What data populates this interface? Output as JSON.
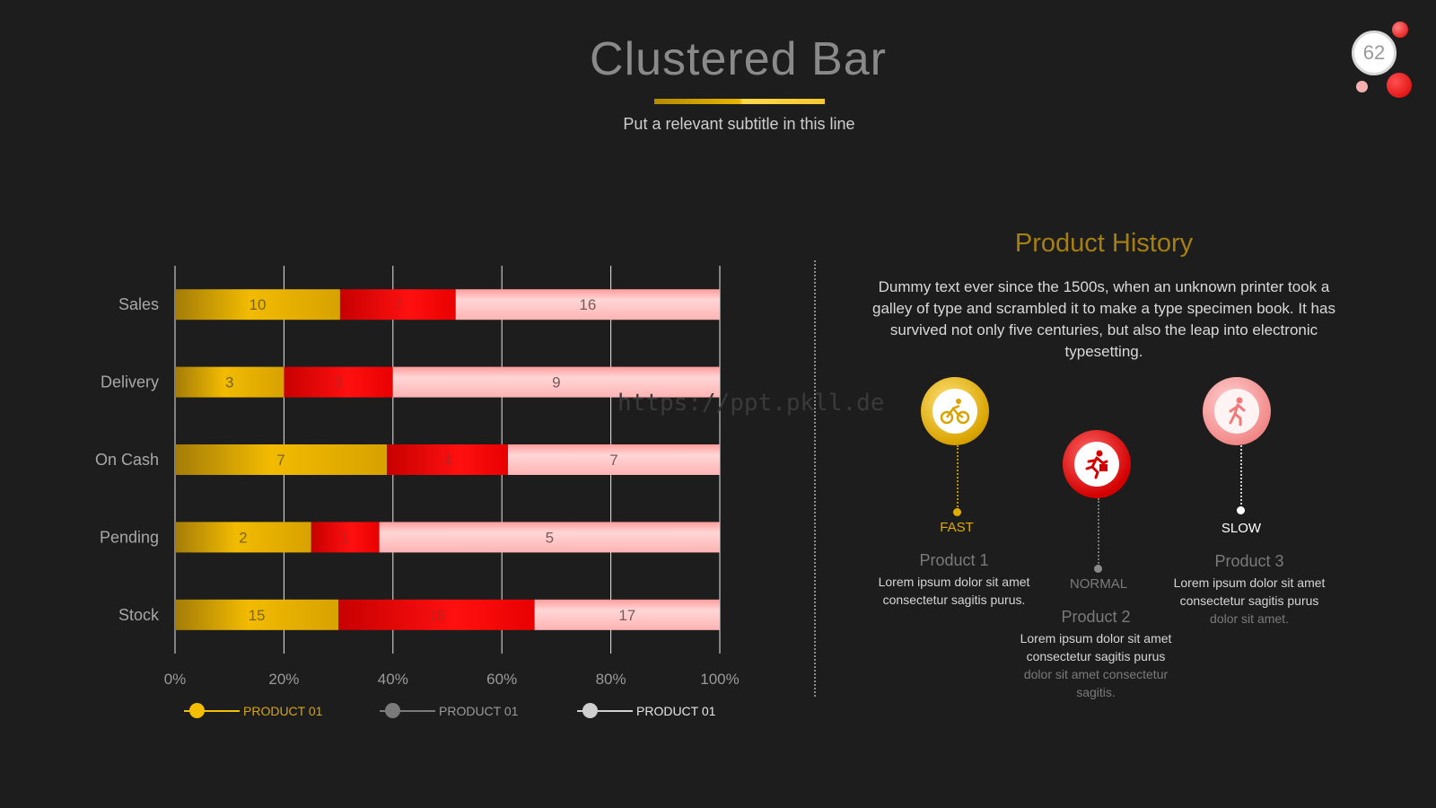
{
  "header": {
    "title": "Clustered Bar",
    "subtitle": "Put a relevant subtitle in this line",
    "page_number": "62"
  },
  "chart_data": {
    "type": "bar",
    "orientation": "horizontal",
    "stacked": "percent",
    "categories": [
      "Sales",
      "Delivery",
      "On Cash",
      "Pending",
      "Stock"
    ],
    "series": [
      {
        "name": "PRODUCT 01",
        "values": [
          10,
          3,
          7,
          2,
          15
        ],
        "color": "#e0ac00"
      },
      {
        "name": "PRODUCT 01",
        "values": [
          7,
          3,
          4,
          1,
          18
        ],
        "color": "#e80000"
      },
      {
        "name": "PRODUCT 01",
        "values": [
          16,
          9,
          7,
          5,
          17
        ],
        "color": "#ffc2c2"
      }
    ],
    "x_ticks": [
      "0%",
      "20%",
      "40%",
      "60%",
      "80%",
      "100%"
    ],
    "xlim": [
      0,
      100
    ],
    "grid": true,
    "legend": "bottom"
  },
  "legend": {
    "colors": [
      "#f5be00",
      "#7a7a7a",
      "#cfcfcf"
    ],
    "label_colors": [
      "#d4a514",
      "#9a9a9a",
      "#e6e6e6"
    ]
  },
  "watermark": "https://ppt.pkll.de",
  "history": {
    "title": "Product History",
    "text": "Dummy text ever since the 1500s, when an unknown printer took a galley of type and scrambled it to make a type specimen book. It has survived not only five centuries, but also the leap into electronic typesetting.",
    "products": [
      {
        "name": "Product 1",
        "speed": "FAST",
        "icon": "cyclist-icon",
        "desc_line1": "Lorem ipsum dolor sit amet consectetur sagitis purus.",
        "desc_line2": ""
      },
      {
        "name": "Product 2",
        "speed": "NORMAL",
        "icon": "runner-icon",
        "desc_line1": "Lorem ipsum dolor sit amet consectetur sagitis purus",
        "desc_line2": "dolor sit amet consectetur sagitis."
      },
      {
        "name": "Product 3",
        "speed": "SLOW",
        "icon": "walker-icon",
        "desc_line1": "Lorem ipsum dolor sit amet consectetur sagitis purus",
        "desc_line2": "dolor sit amet."
      }
    ]
  }
}
